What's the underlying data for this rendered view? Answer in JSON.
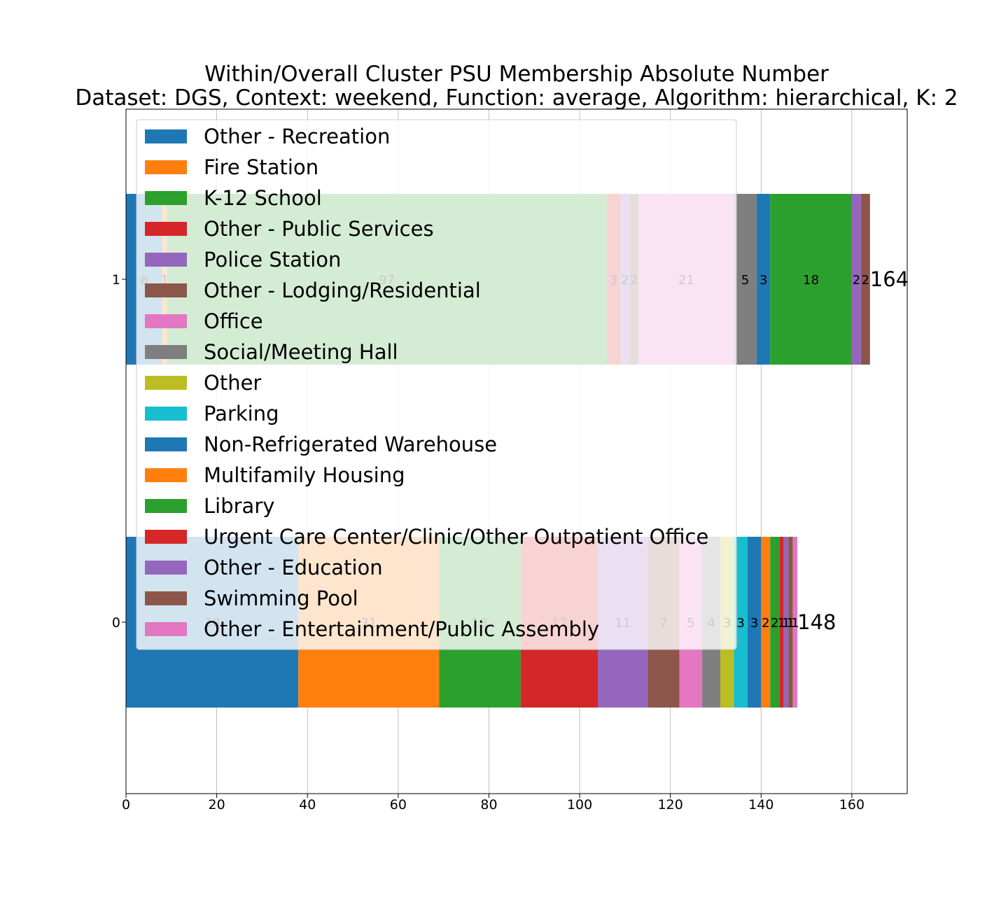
{
  "chart_data": {
    "type": "bar",
    "orientation": "horizontal",
    "stacked": true,
    "title": "Within/Overall Cluster PSU Membership Absolute Number",
    "subtitle": "Dataset: DGS, Context: weekend, Function: average, Algorithm: hierarchical, K: 2",
    "xlabel": "",
    "ylabel": "",
    "xlim": [
      0,
      172.2
    ],
    "x_ticks": [
      0,
      20,
      40,
      60,
      80,
      100,
      120,
      140,
      160
    ],
    "grid": "vertical",
    "legend_placement": "upper-left",
    "categories": [
      "0",
      "1"
    ],
    "series": [
      {
        "name": "Other - Recreation",
        "color": "#1f77b4",
        "values": [
          38,
          8
        ],
        "labels": [
          "38",
          "8"
        ]
      },
      {
        "name": "Fire Station",
        "color": "#ff7f0e",
        "values": [
          31,
          1
        ],
        "labels": [
          "31",
          "1"
        ]
      },
      {
        "name": "K-12 School",
        "color": "#2ca02c",
        "values": [
          18,
          97
        ],
        "labels": [
          "18",
          "97"
        ]
      },
      {
        "name": "Other - Public Services",
        "color": "#d62728",
        "values": [
          17,
          3
        ],
        "labels": [
          "17",
          "3"
        ]
      },
      {
        "name": "Police Station",
        "color": "#9467bd",
        "values": [
          11,
          2
        ],
        "labels": [
          "11",
          "2"
        ]
      },
      {
        "name": "Other - Lodging/Residential",
        "color": "#8c564b",
        "values": [
          7,
          2
        ],
        "labels": [
          "7",
          "2"
        ]
      },
      {
        "name": "Office",
        "color": "#e377c2",
        "values": [
          5,
          21
        ],
        "labels": [
          "5",
          "21"
        ]
      },
      {
        "name": "Social/Meeting Hall",
        "color": "#7f7f7f",
        "values": [
          4,
          5
        ],
        "labels": [
          "4",
          "5"
        ]
      },
      {
        "name": "Other",
        "color": "#bcbd22",
        "values": [
          3,
          0
        ],
        "labels": [
          "3",
          ""
        ]
      },
      {
        "name": "Parking",
        "color": "#17becf",
        "values": [
          3,
          0
        ],
        "labels": [
          "3",
          ""
        ]
      },
      {
        "name": "Non-Refrigerated Warehouse",
        "color": "#1f77b4",
        "values": [
          3,
          3
        ],
        "labels": [
          "3",
          "3"
        ]
      },
      {
        "name": "Multifamily Housing",
        "color": "#ff7f0e",
        "values": [
          2,
          0
        ],
        "labels": [
          "2",
          ""
        ]
      },
      {
        "name": "Library",
        "color": "#2ca02c",
        "values": [
          2,
          18
        ],
        "labels": [
          "2",
          "18"
        ]
      },
      {
        "name": "Urgent Care Center/Clinic/Other Outpatient Office",
        "color": "#d62728",
        "values": [
          1,
          0
        ],
        "labels": [
          "1",
          ""
        ]
      },
      {
        "name": "Other - Education",
        "color": "#9467bd",
        "values": [
          1,
          2
        ],
        "labels": [
          "1",
          "2"
        ]
      },
      {
        "name": "Swimming Pool",
        "color": "#8c564b",
        "values": [
          1,
          2
        ],
        "labels": [
          "1",
          "2"
        ]
      },
      {
        "name": "Other - Entertainment/Public Assembly",
        "color": "#e377c2",
        "values": [
          1,
          0
        ],
        "labels": [
          "1",
          ""
        ]
      }
    ],
    "totals": [
      "148",
      "164"
    ]
  }
}
